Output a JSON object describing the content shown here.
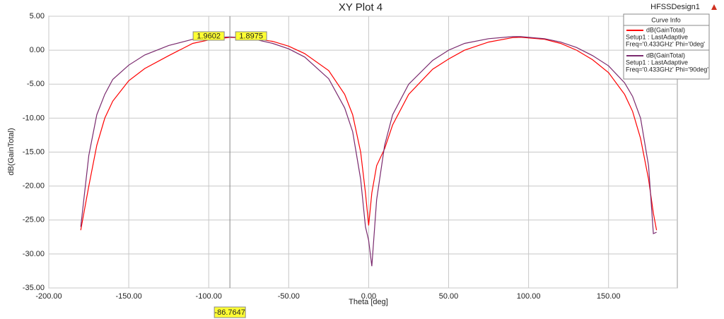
{
  "chart_data": {
    "type": "line",
    "title": "XY Plot 4",
    "design_name": "HFSSDesign1",
    "x_label": "Theta [deg]",
    "y_label": "dB(GainTotal)",
    "legend_title": "Curve Info",
    "legend_position": "upper right",
    "grid": true,
    "x": [
      -180,
      -175,
      -170,
      -165,
      -160,
      -150,
      -140,
      -125,
      -110,
      -100,
      -86.7647,
      -75,
      -60,
      -50,
      -40,
      -25,
      -15,
      -10,
      -5,
      -2,
      0,
      2,
      5,
      10,
      15,
      25,
      40,
      50,
      60,
      75,
      90,
      95,
      110,
      120,
      130,
      140,
      150,
      160,
      165,
      170,
      175,
      178,
      180
    ],
    "series": [
      {
        "name": "dB(GainTotal)",
        "details": [
          "Setup1 : LastAdaptive",
          "Freq='0.433GHz' Phi='0deg'"
        ],
        "color": "#ff0000",
        "values": [
          -26.5,
          -20,
          -14,
          -10,
          -7.5,
          -4.5,
          -2.7,
          -0.8,
          1.0,
          1.5,
          1.8975,
          1.8,
          1.3,
          0.6,
          -0.5,
          -3.0,
          -6.5,
          -9.5,
          -15,
          -21,
          -25.8,
          -21,
          -17,
          -14.5,
          -11,
          -6.5,
          -2.8,
          -1.3,
          0,
          1.2,
          1.85,
          1.9,
          1.6,
          1.0,
          0,
          -1.4,
          -3.3,
          -6.5,
          -9,
          -13,
          -19,
          -24,
          -26.5
        ]
      },
      {
        "name": "dB(GainTotal)",
        "details": [
          "Setup1 : LastAdaptive",
          "Freq='0.433GHz' Phi='90deg'"
        ],
        "color": "#7a2a6e",
        "values": [
          -26,
          -15.5,
          -9.5,
          -6.5,
          -4.3,
          -2.2,
          -0.7,
          0.7,
          1.6,
          1.85,
          1.9602,
          1.8,
          1.0,
          0.2,
          -1.0,
          -4.2,
          -8.5,
          -12,
          -19,
          -26,
          -28,
          -31.8,
          -22,
          -14,
          -9.5,
          -5,
          -1.5,
          0,
          1,
          1.7,
          2.0,
          2.0,
          1.7,
          1.2,
          0.4,
          -0.8,
          -2.3,
          -4.8,
          -6.8,
          -10,
          -17,
          -27,
          -26.8
        ]
      }
    ],
    "marker": {
      "x": -86.7647,
      "values": [
        1.9602,
        1.8975
      ]
    },
    "xlim": [
      -200,
      193
    ],
    "ylim": [
      -35,
      5
    ],
    "xticks": [
      {
        "value": -200,
        "label": "-200.00"
      },
      {
        "value": -150,
        "label": "-150.00"
      },
      {
        "value": -100,
        "label": "-100.00"
      },
      {
        "value": -50,
        "label": "-50.00"
      },
      {
        "value": 0,
        "label": "0.00"
      },
      {
        "value": 50,
        "label": "50.00"
      },
      {
        "value": 100,
        "label": "100.00"
      },
      {
        "value": 150,
        "label": "150.00"
      }
    ],
    "yticks": [
      {
        "value": -35,
        "label": "-35.00"
      },
      {
        "value": -30,
        "label": "-30.00"
      },
      {
        "value": -25,
        "label": "-25.00"
      },
      {
        "value": -20,
        "label": "-20.00"
      },
      {
        "value": -15,
        "label": "-15.00"
      },
      {
        "value": -10,
        "label": "-10.00"
      },
      {
        "value": -5,
        "label": "-5.00"
      },
      {
        "value": 0,
        "label": "0.00"
      },
      {
        "value": 5,
        "label": "5.00"
      }
    ]
  }
}
